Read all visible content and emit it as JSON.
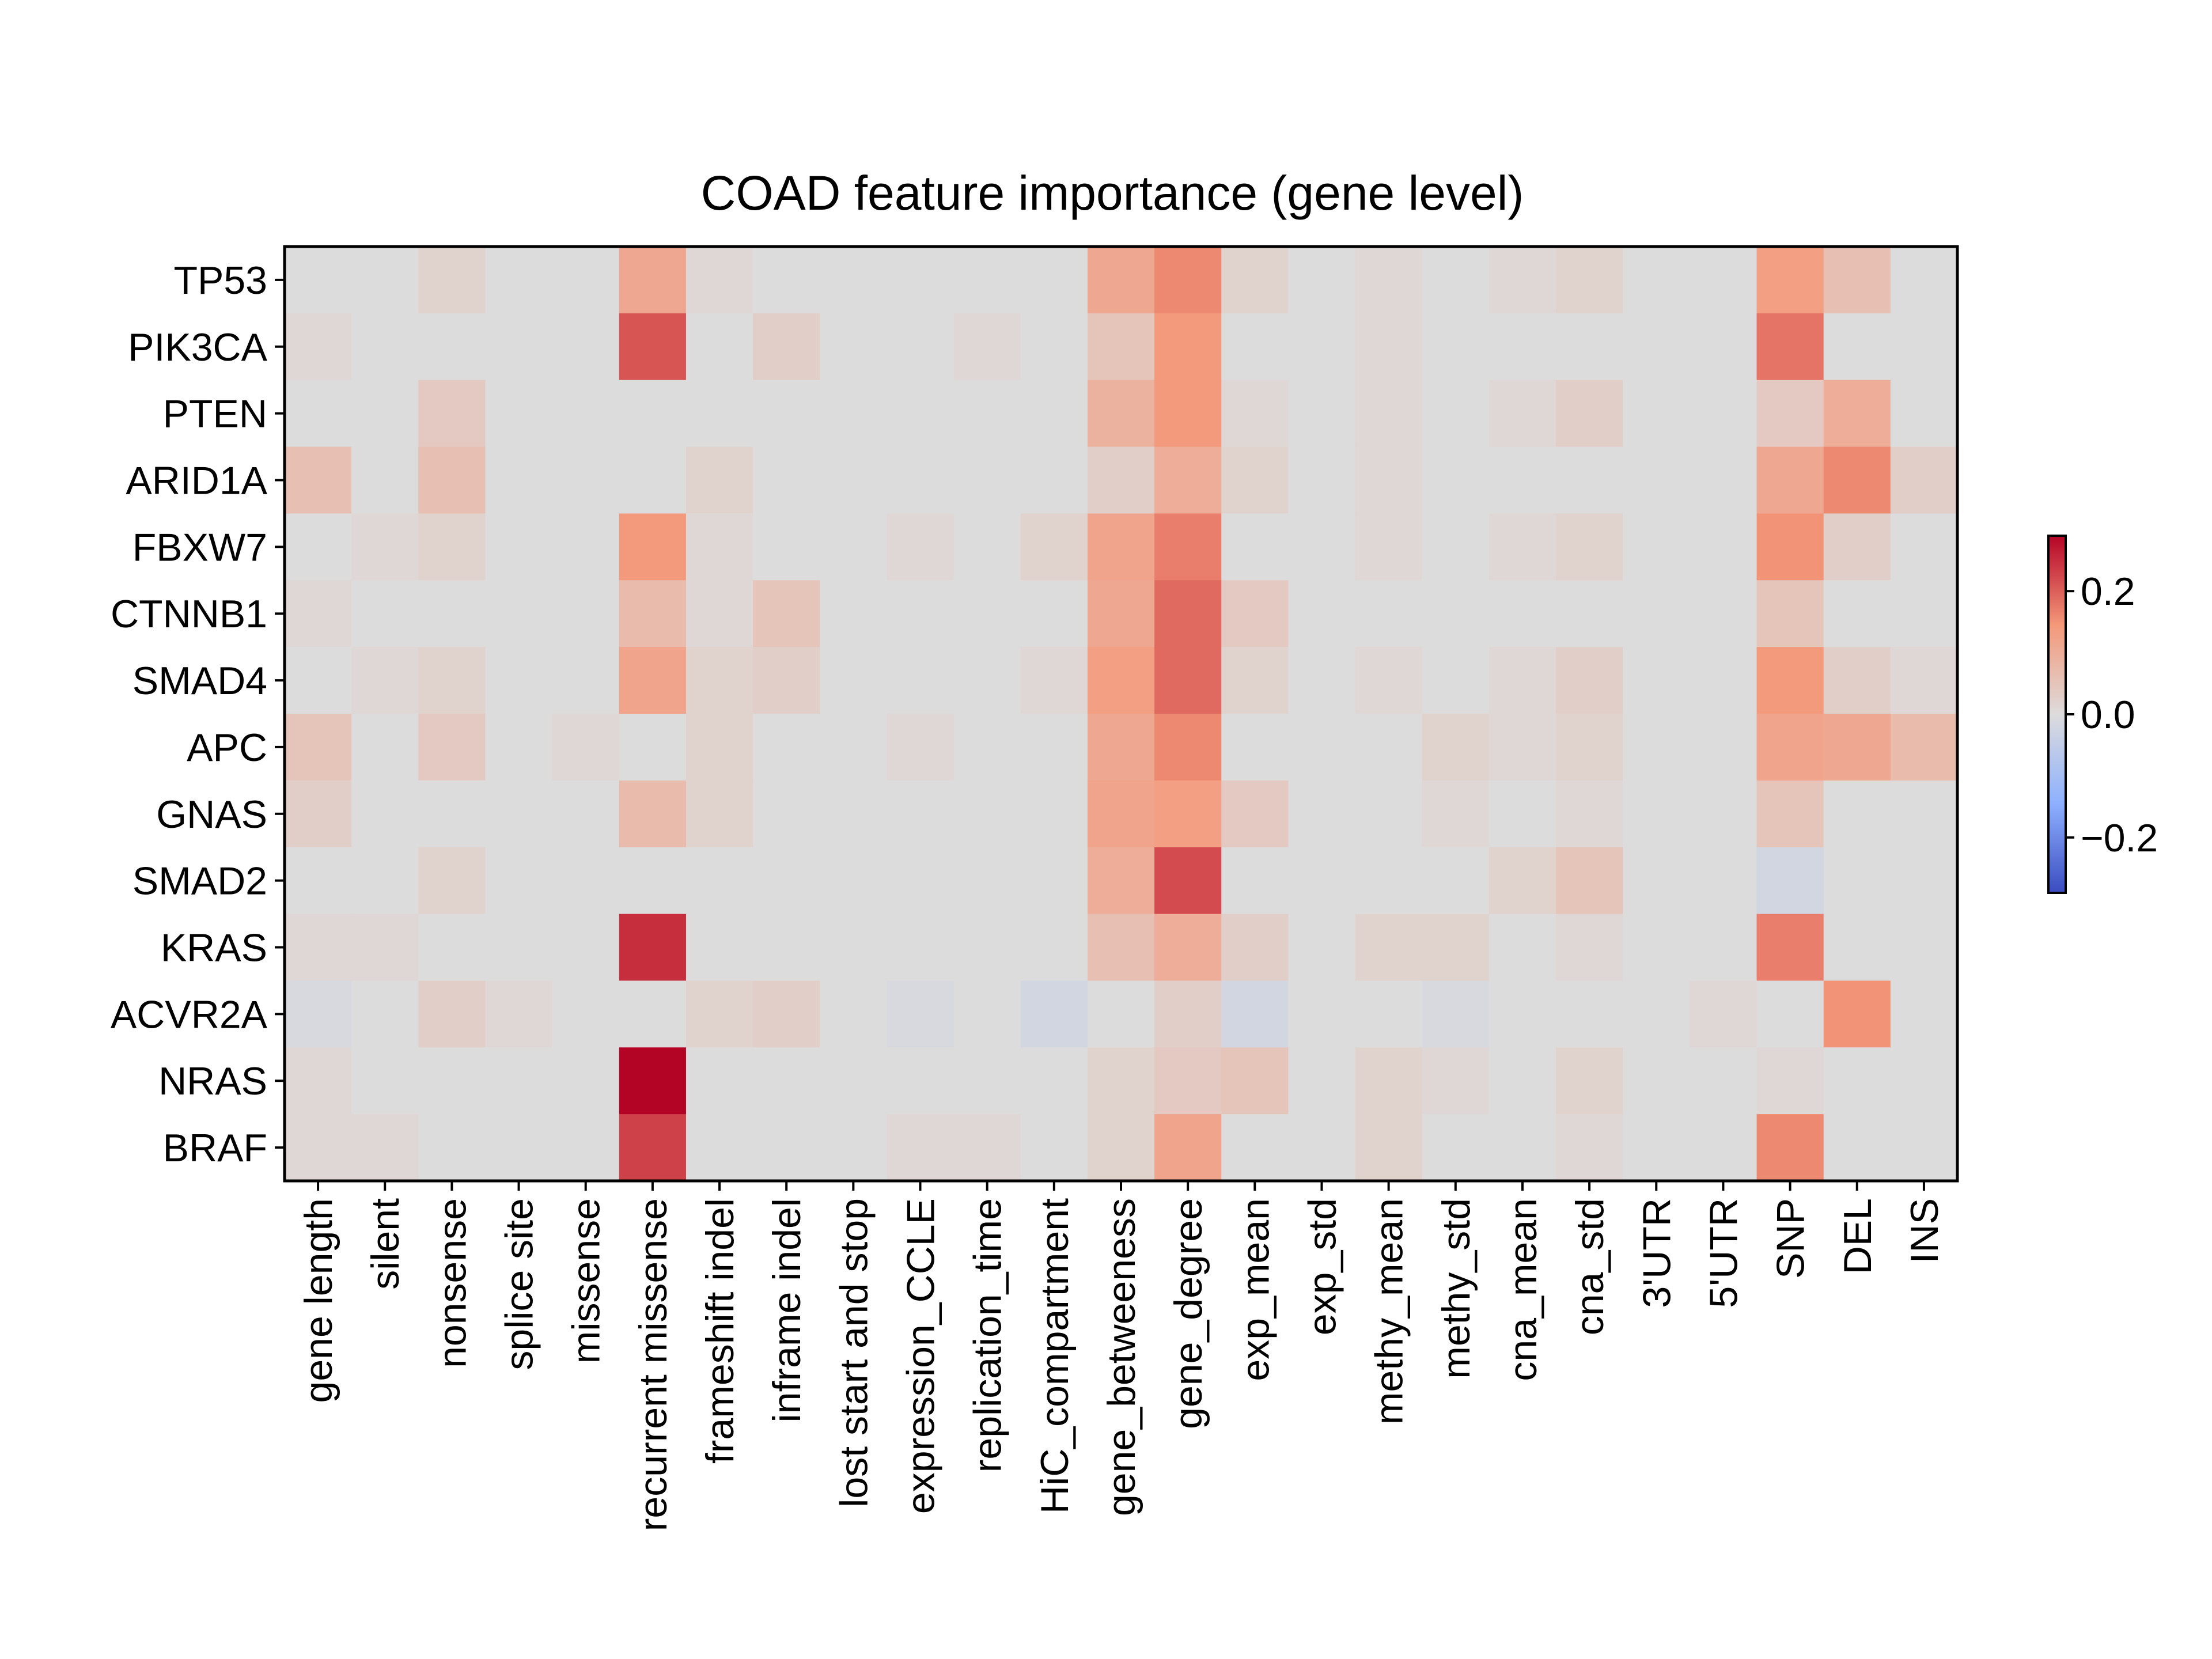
{
  "chart_data": {
    "type": "heatmap",
    "title": "COAD feature importance (gene level)",
    "xlabel": "",
    "ylabel": "",
    "colormap": "coolwarm",
    "vmin": -0.29,
    "vmax": 0.29,
    "grid": false,
    "legend": "colorbar-right",
    "colorbar_ticks": [
      0.2,
      0.0,
      -0.2
    ],
    "colorbar_tick_labels": [
      "0.2",
      "0.0",
      "−0.2"
    ],
    "columns": [
      "gene length",
      "silent",
      "nonsense",
      "splice site",
      "missense",
      "recurrent missense",
      "frameshift indel",
      "inframe indel",
      "lost start and stop",
      "expression_CCLE",
      "replication_time",
      "HiC_compartment",
      "gene_betweeness",
      "gene_degree",
      "exp_mean",
      "exp_std",
      "methy_mean",
      "methy_std",
      "cna_mean",
      "cna_std",
      "3'UTR",
      "5'UTR",
      "SNP",
      "DEL",
      "INS"
    ],
    "rows": [
      "TP53",
      "PIK3CA",
      "PTEN",
      "ARID1A",
      "FBXW7",
      "CTNNB1",
      "SMAD4",
      "APC",
      "GNAS",
      "SMAD2",
      "KRAS",
      "ACVR2A",
      "NRAS",
      "BRAF"
    ],
    "values": [
      [
        0.0,
        0.0,
        0.02,
        0.0,
        0.0,
        0.11,
        0.01,
        0.0,
        0.0,
        0.0,
        0.0,
        0.0,
        0.11,
        0.16,
        0.02,
        0.0,
        0.01,
        0.0,
        0.01,
        0.02,
        0.0,
        0.0,
        0.13,
        0.06,
        0.0
      ],
      [
        0.01,
        0.0,
        0.0,
        0.0,
        0.0,
        0.21,
        0.0,
        0.03,
        0.0,
        0.0,
        0.01,
        0.0,
        0.05,
        0.14,
        0.0,
        0.0,
        0.01,
        0.0,
        0.0,
        0.0,
        0.0,
        0.0,
        0.18,
        0.0,
        0.0
      ],
      [
        0.0,
        0.0,
        0.04,
        0.0,
        0.0,
        0.0,
        0.0,
        0.0,
        0.0,
        0.0,
        0.0,
        0.0,
        0.09,
        0.14,
        0.01,
        0.0,
        0.01,
        0.0,
        0.01,
        0.03,
        0.0,
        0.0,
        0.04,
        0.1,
        0.0
      ],
      [
        0.06,
        0.0,
        0.06,
        0.0,
        0.0,
        0.0,
        0.02,
        0.0,
        0.0,
        0.0,
        0.0,
        0.0,
        0.03,
        0.1,
        0.02,
        0.0,
        0.01,
        0.0,
        0.0,
        0.0,
        0.0,
        0.0,
        0.11,
        0.16,
        0.03
      ],
      [
        0.0,
        0.01,
        0.02,
        0.0,
        0.0,
        0.14,
        0.01,
        0.0,
        0.0,
        0.01,
        0.0,
        0.02,
        0.12,
        0.17,
        0.0,
        0.0,
        0.01,
        0.0,
        0.01,
        0.02,
        0.0,
        0.0,
        0.15,
        0.03,
        0.0
      ],
      [
        0.01,
        0.0,
        0.0,
        0.0,
        0.0,
        0.07,
        0.01,
        0.05,
        0.0,
        0.0,
        0.0,
        0.0,
        0.11,
        0.19,
        0.04,
        0.0,
        0.0,
        0.0,
        0.0,
        0.0,
        0.0,
        0.0,
        0.05,
        0.0,
        0.0
      ],
      [
        0.0,
        0.01,
        0.02,
        0.0,
        0.0,
        0.12,
        0.02,
        0.03,
        0.0,
        0.0,
        0.0,
        0.01,
        0.13,
        0.19,
        0.02,
        0.0,
        0.01,
        0.0,
        0.01,
        0.03,
        0.0,
        0.0,
        0.14,
        0.03,
        0.01
      ],
      [
        0.05,
        0.0,
        0.04,
        0.0,
        0.01,
        0.0,
        0.02,
        0.0,
        0.0,
        0.01,
        0.0,
        0.0,
        0.11,
        0.16,
        0.0,
        0.0,
        0.0,
        0.02,
        0.01,
        0.02,
        0.0,
        0.0,
        0.12,
        0.11,
        0.07
      ],
      [
        0.03,
        0.0,
        0.0,
        0.0,
        0.0,
        0.07,
        0.02,
        0.0,
        0.0,
        0.0,
        0.0,
        0.0,
        0.12,
        0.13,
        0.04,
        0.0,
        0.0,
        0.01,
        0.0,
        0.01,
        0.0,
        0.0,
        0.05,
        0.0,
        0.0
      ],
      [
        0.0,
        0.0,
        0.02,
        0.0,
        0.0,
        0.0,
        0.0,
        0.0,
        0.0,
        0.0,
        0.0,
        0.0,
        0.1,
        0.22,
        0.0,
        0.0,
        0.0,
        0.0,
        0.02,
        0.05,
        0.0,
        0.0,
        -0.02,
        0.0,
        0.0
      ],
      [
        0.01,
        0.01,
        0.0,
        0.0,
        0.0,
        0.25,
        0.0,
        0.0,
        0.0,
        0.0,
        0.0,
        0.0,
        0.06,
        0.1,
        0.03,
        0.0,
        0.02,
        0.02,
        0.0,
        0.01,
        0.0,
        0.0,
        0.17,
        0.0,
        0.0
      ],
      [
        -0.01,
        0.0,
        0.03,
        0.01,
        0.0,
        0.0,
        0.02,
        0.03,
        0.0,
        -0.01,
        0.0,
        -0.02,
        0.0,
        0.03,
        -0.02,
        0.0,
        0.0,
        -0.01,
        0.0,
        0.0,
        0.0,
        0.01,
        0.0,
        0.15,
        0.0
      ],
      [
        0.01,
        0.0,
        0.0,
        0.0,
        0.0,
        0.29,
        0.0,
        0.0,
        0.0,
        0.0,
        0.0,
        0.0,
        0.02,
        0.04,
        0.05,
        0.0,
        0.02,
        0.01,
        0.0,
        0.02,
        0.0,
        0.0,
        0.01,
        0.0,
        0.0
      ],
      [
        0.01,
        0.01,
        0.0,
        0.0,
        0.0,
        0.23,
        0.0,
        0.0,
        0.0,
        0.01,
        0.01,
        0.0,
        0.02,
        0.12,
        0.0,
        0.0,
        0.02,
        0.0,
        0.0,
        0.01,
        0.0,
        0.0,
        0.16,
        0.0,
        0.0
      ]
    ]
  }
}
